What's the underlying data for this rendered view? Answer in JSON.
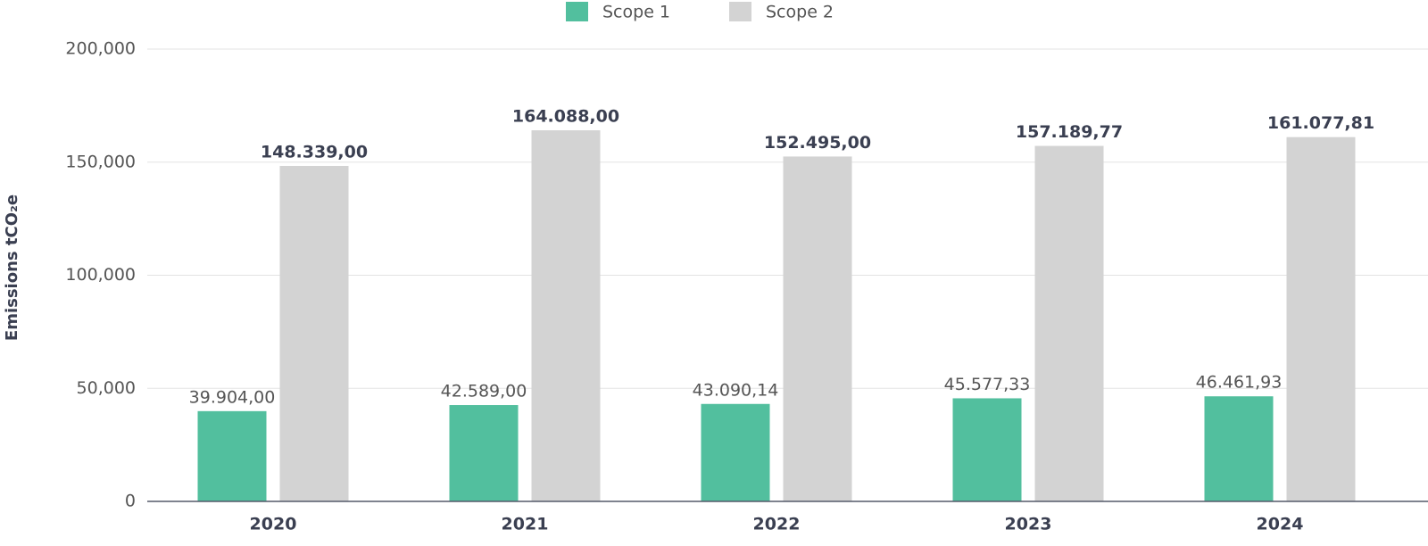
{
  "chart_data": {
    "type": "bar",
    "ylabel": "Emissions tCO₂e",
    "categories": [
      "2020",
      "2021",
      "2022",
      "2023",
      "2024"
    ],
    "series": [
      {
        "name": "Scope 1",
        "color": "#52bf9e",
        "values": [
          39904,
          42589,
          43090.14,
          45577.33,
          46461.93
        ],
        "value_labels": [
          "39.904,00",
          "42.589,00",
          "43.090,14",
          "45.577,33",
          "46.461,93"
        ]
      },
      {
        "name": "Scope 2",
        "color": "#d3d3d3",
        "values": [
          148339,
          164088,
          152495,
          157189.77,
          161077.81
        ],
        "value_labels": [
          "148.339,00",
          "164.088,00",
          "152.495,00",
          "157.189,77",
          "161.077,81"
        ]
      }
    ],
    "ylim": [
      0,
      200000
    ],
    "yticks": [
      0,
      {
        "value": 50000,
        "label": "50,000"
      },
      {
        "value": 100000,
        "label": "100,000"
      },
      {
        "value": 150000,
        "label": "150,000"
      },
      {
        "value": 200000,
        "label": "200,000"
      }
    ],
    "grid": true,
    "legend": "top"
  }
}
